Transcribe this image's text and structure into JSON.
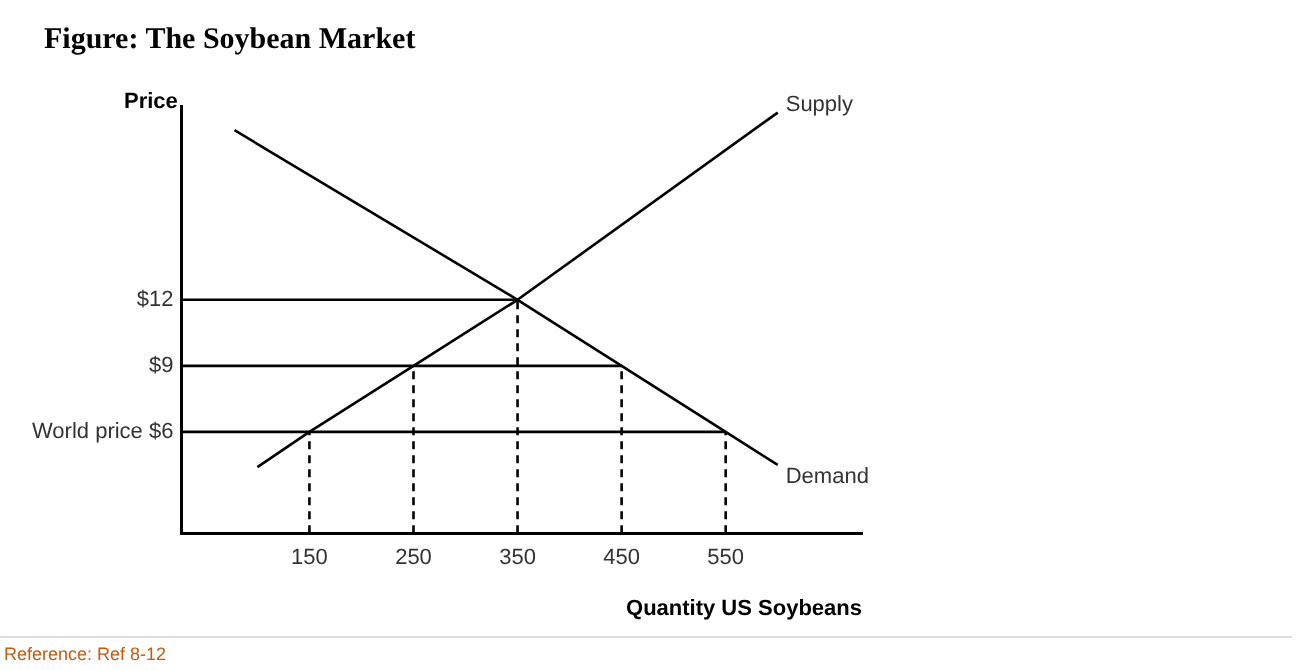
{
  "chart_data": {
    "type": "line",
    "title": "Figure: The Soybean Market",
    "xlabel": "Quantity US Soybeans",
    "ylabel": "Price",
    "annotations": [
      "Reference: Ref 8-12"
    ],
    "xlim": [
      27,
      681
    ],
    "xticks": [
      150,
      250,
      350,
      450,
      550
    ],
    "ylim": [
      1.4,
      20.8
    ],
    "yticks": [
      {
        "value": 6,
        "label": "World price $6"
      },
      {
        "value": 9,
        "label": "$9"
      },
      {
        "value": 12,
        "label": "$12"
      }
    ],
    "legend": false,
    "series": [
      {
        "name": "Supply",
        "type": "line",
        "color": "#000000",
        "line_style": "solid",
        "x": [
          100,
          150,
          250,
          350,
          600
        ],
        "values": [
          4.4,
          6,
          9,
          12,
          20.5
        ]
      },
      {
        "name": "Demand",
        "type": "line",
        "color": "#000000",
        "line_style": "solid",
        "x": [
          78,
          350,
          450,
          550,
          600
        ],
        "values": [
          19.7,
          12,
          9,
          6,
          4.5
        ]
      },
      {
        "type": "line",
        "color": "#000000",
        "line_style": "solid",
        "x": [
          27,
          350
        ],
        "values": [
          12,
          12
        ]
      },
      {
        "type": "line",
        "color": "#000000",
        "line_style": "solid",
        "x": [
          27,
          450
        ],
        "values": [
          9,
          9
        ]
      },
      {
        "type": "line",
        "color": "#000000",
        "line_style": "solid",
        "x": [
          27,
          550
        ],
        "values": [
          6,
          6
        ]
      },
      {
        "type": "line",
        "color": "#000000",
        "line_style": "dashed",
        "x": [
          150,
          150
        ],
        "values": [
          1.4,
          6
        ]
      },
      {
        "type": "line",
        "color": "#000000",
        "line_style": "dashed",
        "x": [
          250,
          250
        ],
        "values": [
          1.4,
          9
        ]
      },
      {
        "type": "line",
        "color": "#000000",
        "line_style": "dashed",
        "x": [
          350,
          350
        ],
        "values": [
          1.4,
          12
        ]
      },
      {
        "type": "line",
        "color": "#000000",
        "line_style": "dashed",
        "x": [
          450,
          450
        ],
        "values": [
          1.4,
          9
        ]
      },
      {
        "type": "line",
        "color": "#000000",
        "line_style": "dashed",
        "x": [
          550,
          550
        ],
        "values": [
          1.4,
          6
        ]
      }
    ]
  }
}
